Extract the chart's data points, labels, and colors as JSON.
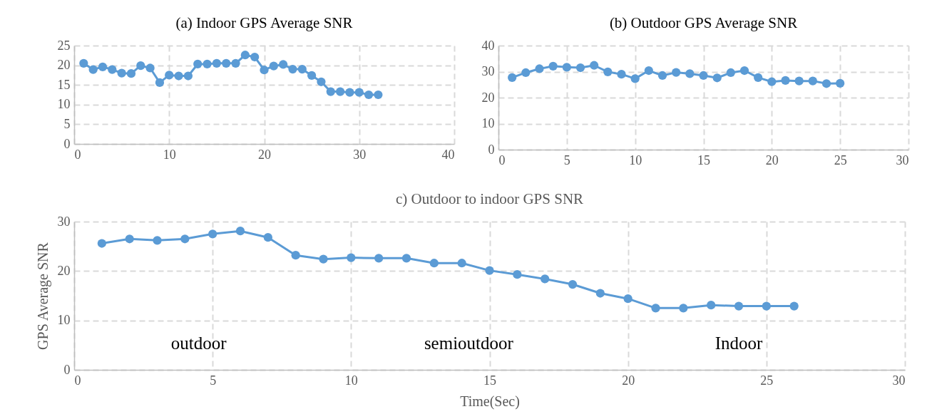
{
  "chart_data": [
    {
      "type": "line",
      "title": "(a) Indoor GPS Average SNR",
      "x": [
        1,
        2,
        3,
        4,
        5,
        6,
        7,
        8,
        9,
        10,
        11,
        12,
        13,
        14,
        15,
        16,
        17,
        18,
        19,
        20,
        21,
        22,
        23,
        24,
        25,
        26,
        27,
        28,
        29,
        30,
        31,
        32
      ],
      "series": [
        {
          "color": "#5b9bd5",
          "values": [
            20.5,
            18.9,
            19.6,
            18.9,
            18,
            17.9,
            19.9,
            19.3,
            15.6,
            17.5,
            17.3,
            17.3,
            20.3,
            20.3,
            20.5,
            20.5,
            20.5,
            22.6,
            22.1,
            18.8,
            19.8,
            20.2,
            19,
            19,
            17.4,
            15.8,
            13.3,
            13.3,
            13.1,
            13.1,
            12.5,
            12.5
          ]
        }
      ],
      "xlim": [
        0,
        40
      ],
      "xticks": [
        0,
        10,
        20,
        30,
        40
      ],
      "ylim": [
        0,
        25
      ],
      "yticks": [
        0,
        5,
        10,
        15,
        20,
        25
      ],
      "grid": true,
      "marker": "circle"
    },
    {
      "type": "line",
      "title": "(b) Outdoor GPS Average SNR",
      "x": [
        1,
        2,
        3,
        4,
        5,
        6,
        7,
        8,
        9,
        10,
        11,
        12,
        13,
        14,
        15,
        16,
        17,
        18,
        19,
        20,
        21,
        22,
        23,
        24,
        25
      ],
      "series": [
        {
          "color": "#5b9bd5",
          "values": [
            27.7,
            29.6,
            31.1,
            32.1,
            31.7,
            31.5,
            32.4,
            29.9,
            29,
            27.3,
            30.4,
            28.5,
            29.7,
            29.2,
            28.5,
            27.6,
            29.6,
            30.4,
            27.7,
            26.1,
            26.6,
            26.4,
            26.4,
            25.4,
            25.5
          ]
        }
      ],
      "xlim": [
        0,
        30
      ],
      "xticks": [
        0,
        5,
        10,
        15,
        20,
        25,
        30
      ],
      "ylim": [
        0,
        40
      ],
      "yticks": [
        0,
        10,
        20,
        30,
        40
      ],
      "grid": true,
      "marker": "circle"
    },
    {
      "type": "line",
      "title": "c) Outdoor to indoor GPS SNR",
      "xlabel": "Time(Sec)",
      "ylabel": "GPS Average SNR",
      "x": [
        1,
        2,
        3,
        4,
        5,
        6,
        7,
        8,
        9,
        10,
        11,
        12,
        13,
        14,
        15,
        16,
        17,
        18,
        19,
        20,
        21,
        22,
        23,
        24,
        25,
        26
      ],
      "series": [
        {
          "color": "#5b9bd5",
          "values": [
            25.6,
            26.5,
            26.2,
            26.5,
            27.5,
            28.1,
            26.8,
            23.2,
            22.4,
            22.7,
            22.6,
            22.6,
            21.6,
            21.6,
            20.1,
            19.3,
            18.4,
            17.3,
            15.5,
            14.4,
            12.5,
            12.5,
            13.1,
            12.9,
            12.9,
            12.9
          ]
        }
      ],
      "xlim": [
        0,
        30
      ],
      "xticks": [
        0,
        5,
        10,
        15,
        20,
        25,
        30
      ],
      "ylim": [
        0,
        30
      ],
      "yticks": [
        0,
        10,
        20,
        30
      ],
      "grid": true,
      "marker": "circle",
      "annotations": [
        "outdoor",
        "semioutdoor",
        "Indoor"
      ]
    }
  ]
}
